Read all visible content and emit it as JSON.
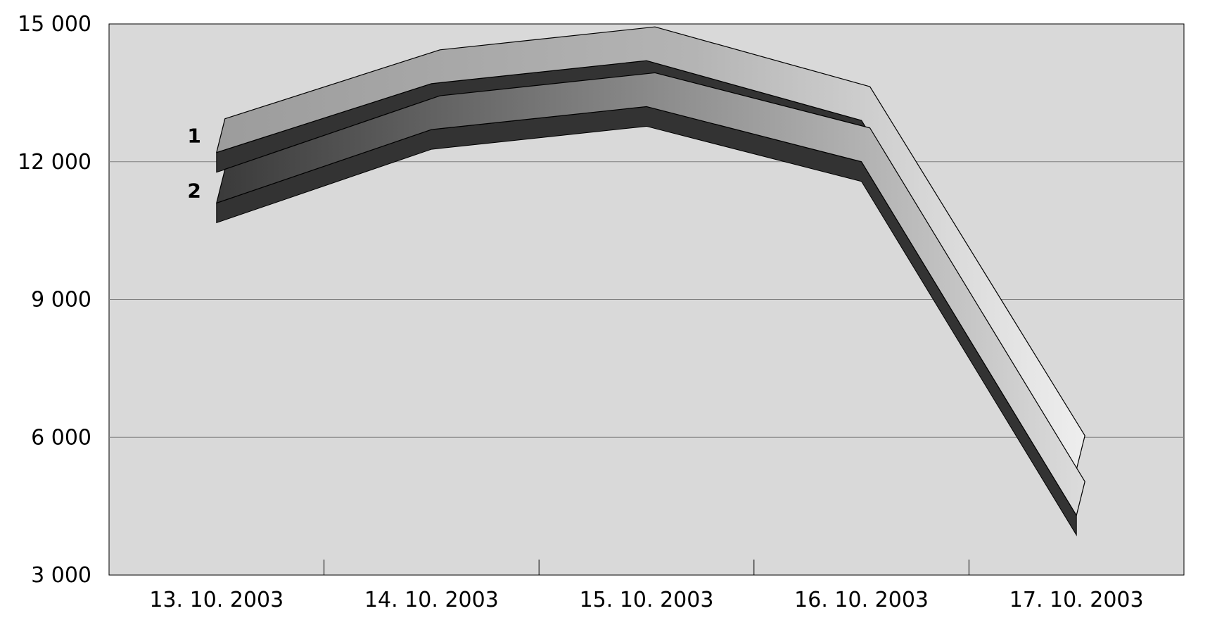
{
  "chart_data": {
    "type": "line",
    "title": "",
    "xlabel": "",
    "ylabel": "",
    "categories": [
      "13. 10. 2003",
      "14. 10. 2003",
      "15. 10. 2003",
      "16. 10. 2003",
      "17. 10. 2003"
    ],
    "ylim": [
      3000,
      15000
    ],
    "yticks": [
      3000,
      6000,
      9000,
      12000,
      15000
    ],
    "ytick_labels": [
      "3 000",
      "6 000",
      "9 000",
      "12 000",
      "15 000"
    ],
    "grid": true,
    "legend": "none",
    "series": [
      {
        "name": "1",
        "values": [
          12200,
          13700,
          14200,
          12900,
          5300
        ]
      },
      {
        "name": "2",
        "values": [
          11100,
          12700,
          13200,
          12000,
          4300
        ]
      }
    ],
    "colors": {
      "plot_background": "#d9d9d9",
      "gridline": "#808080",
      "series_1_top": "#a8a8a8",
      "series_2_top": "#6e6e6e",
      "shadow": "#333333"
    }
  }
}
